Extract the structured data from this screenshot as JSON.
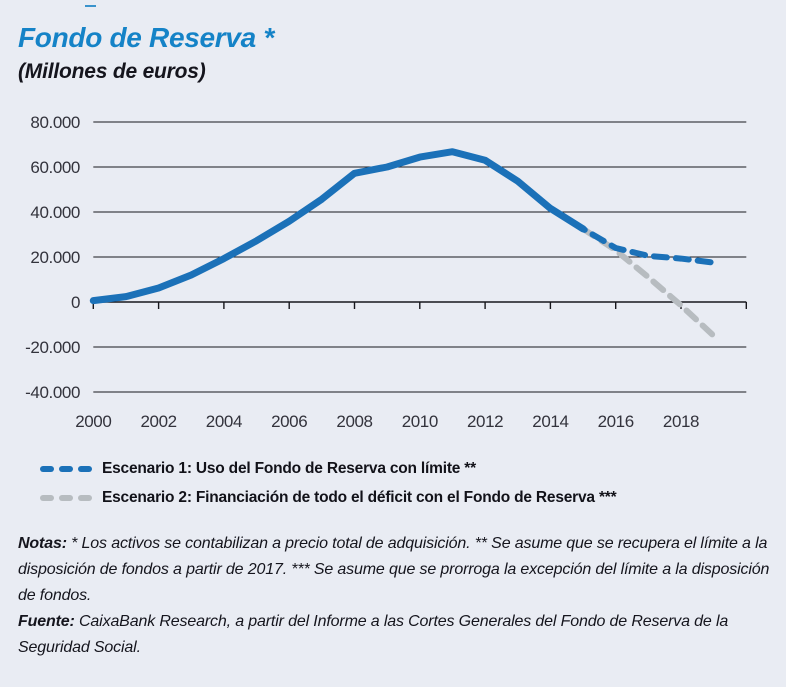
{
  "title": "Fondo de Reserva *",
  "subtitle": "(Millones de euros)",
  "colors": {
    "title_blue": "#1583c7",
    "series_blue": "#1b71b8",
    "series_gray": "#b7bcc0",
    "background": "#e9ecf3",
    "grid": "#17171c"
  },
  "chart_data": {
    "type": "line",
    "title": "Fondo de Reserva *",
    "subtitle": "(Millones de euros)",
    "ylabel": "Millones de euros",
    "ylim": [
      -40000,
      80000
    ],
    "yticks": [
      80000,
      60000,
      40000,
      20000,
      0,
      -20000,
      -40000
    ],
    "ytick_labels": [
      "80.000",
      "60.000",
      "40.000",
      "20.000",
      "0",
      "-20.000",
      "-40.000"
    ],
    "x_range": [
      2000,
      2020
    ],
    "x_axis_tick_step": 2,
    "xticks": [
      2000,
      2002,
      2004,
      2006,
      2008,
      2010,
      2012,
      2014,
      2016,
      2018
    ],
    "xtick_labels": [
      "2000",
      "2002",
      "2004",
      "2006",
      "2008",
      "2010",
      "2012",
      "2014",
      "2016",
      "2018"
    ],
    "grid": "horizontal",
    "legend_position": "below",
    "series": [
      {
        "key": "escenario-2",
        "name": "Escenario 2: Financiación de todo el déficit con el Fondo de Reserva ***",
        "style": "dashed",
        "color": "#b7bcc0",
        "z": 1,
        "x": [
          2015,
          2016,
          2017,
          2018,
          2019
        ],
        "values": [
          32500,
          23000,
          11000,
          -1500,
          -15000
        ]
      },
      {
        "key": "escenario-1",
        "name": "Escenario 1: Uso del Fondo de Reserva con límite **",
        "style": "dashed",
        "color": "#1b71b8",
        "z": 2,
        "x": [
          2015,
          2016,
          2017,
          2018,
          2019
        ],
        "values": [
          32500,
          24000,
          20500,
          19300,
          17500
        ]
      },
      {
        "key": "historico",
        "name": "Fondo de Reserva (histórico)",
        "style": "solid",
        "color": "#1b71b8",
        "z": 3,
        "x": [
          2000,
          2001,
          2002,
          2003,
          2004,
          2005,
          2006,
          2007,
          2008,
          2009,
          2010,
          2011,
          2012,
          2013,
          2014,
          2015
        ],
        "values": [
          600,
          2400,
          6200,
          12000,
          19300,
          27200,
          35900,
          45700,
          57200,
          60000,
          64400,
          66800,
          63000,
          53700,
          41600,
          32500
        ]
      }
    ]
  },
  "legend": {
    "items": [
      {
        "label": "Escenario 1: Uso del Fondo de Reserva con límite **",
        "color": "#1b71b8"
      },
      {
        "label": "Escenario 2: Financiación de todo el déficit con el Fondo de Reserva ***",
        "color": "#b7bcc0"
      }
    ]
  },
  "notes": {
    "label": "Notas:",
    "text": " * Los activos se contabilizan a precio total de adquisición. ** Se asume que se recupera el límite a la disposición de fondos a partir de 2017. *** Se asume que se prorroga la excepción del límite a la disposición de fondos."
  },
  "source": {
    "label": "Fuente:",
    "text": " CaixaBank Research, a partir del Informe a las Cortes Generales del Fondo de Reserva de la Seguridad Social."
  }
}
